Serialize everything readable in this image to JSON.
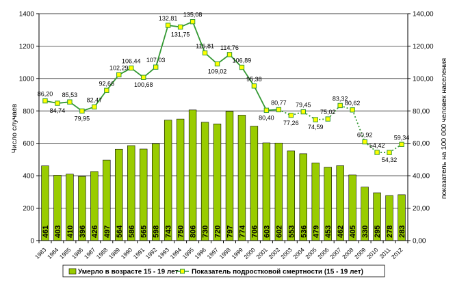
{
  "chart_data": {
    "type": "bar",
    "title": "",
    "x": [
      "1983",
      "1984",
      "1985",
      "1986",
      "1987",
      "1988",
      "1989",
      "1990",
      "1991",
      "1992",
      "1993",
      "1994",
      "1995",
      "1996",
      "1997",
      "1998",
      "1999",
      "2000",
      "2001",
      "2002",
      "2003",
      "2004",
      "2005",
      "2006",
      "2007",
      "2008",
      "2009",
      "2010",
      "2011",
      "2012"
    ],
    "ylabel_left": "Число случаев",
    "ylabel_right": "показатель на 100 000 человек населения",
    "left_axis": {
      "min": 0,
      "max": 1400,
      "step": 200,
      "ticks": [
        "0",
        "200",
        "400",
        "600",
        "800",
        "1000",
        "1200",
        "1400"
      ]
    },
    "right_axis": {
      "min": 0,
      "max": 140,
      "step": 20,
      "ticks": [
        "0,00",
        "20,00",
        "40,00",
        "60,00",
        "80,00",
        "100,00",
        "120,00",
        "140,00"
      ]
    },
    "grid": true,
    "legend_position": "bottom",
    "series": [
      {
        "name": "Умерло в возрасте 15 - 19 лет",
        "kind": "bar",
        "axis": "left",
        "color": "#99CC00",
        "values": [
          461,
          403,
          410,
          396,
          426,
          497,
          564,
          586,
          565,
          598,
          743,
          750,
          806,
          730,
          720,
          797,
          774,
          706,
          603,
          602,
          553,
          536,
          479,
          453,
          462,
          405,
          330,
          295,
          278,
          283
        ],
        "labels": [
          "461",
          "403",
          "410",
          "396",
          "426",
          "497",
          "564",
          "586",
          "565",
          "598",
          "743",
          "750",
          "806",
          "730",
          "720",
          "797",
          "774",
          "706",
          "603",
          "602",
          "553",
          "536",
          "479",
          "453",
          "462",
          "405",
          "330",
          "295",
          "278",
          "283"
        ]
      },
      {
        "name": "Показатель подростковой смертности (15 - 19 лет)",
        "kind": "line",
        "axis": "right",
        "color": "#339933",
        "marker_fill": "#FFFF00",
        "values": [
          86.2,
          84.74,
          85.53,
          79.95,
          82.47,
          92.66,
          102.29,
          106.44,
          100.68,
          107.03,
          132.81,
          131.75,
          135.08,
          115.81,
          109.02,
          114.76,
          106.89,
          95.38,
          80.4,
          80.77,
          77.26,
          79.45,
          74.59,
          75.02,
          83.32,
          80.62,
          60.92,
          54.42,
          54.32,
          59.34
        ],
        "labels": [
          "86,20",
          "84,74",
          "85,53",
          "79,95",
          "82,47",
          "92,66",
          "102,29",
          "106,44",
          "100,68",
          "107,03",
          "132,81",
          "131,75",
          "135,08",
          "115,81",
          "109,02",
          "114,76",
          "106,89",
          "95,38",
          "80,40",
          "80,77",
          "77,26",
          "79,45",
          "74,59",
          "75,02",
          "83,32",
          "80,62",
          "60,92",
          "54,42",
          "54,32",
          "59,34"
        ],
        "segment_styles": [
          "solid",
          "solid",
          "solid",
          "solid",
          "solid",
          "solid",
          "solid",
          "solid",
          "solid",
          "solid",
          "solid",
          "solid",
          "solid",
          "solid",
          "solid",
          "solid",
          "solid",
          "solid",
          "solid",
          "dotted",
          "dotted",
          "dotted",
          "dotted",
          "dotted",
          "dotted",
          "dotted",
          "dotted",
          "dotted",
          "dotted"
        ]
      }
    ]
  }
}
